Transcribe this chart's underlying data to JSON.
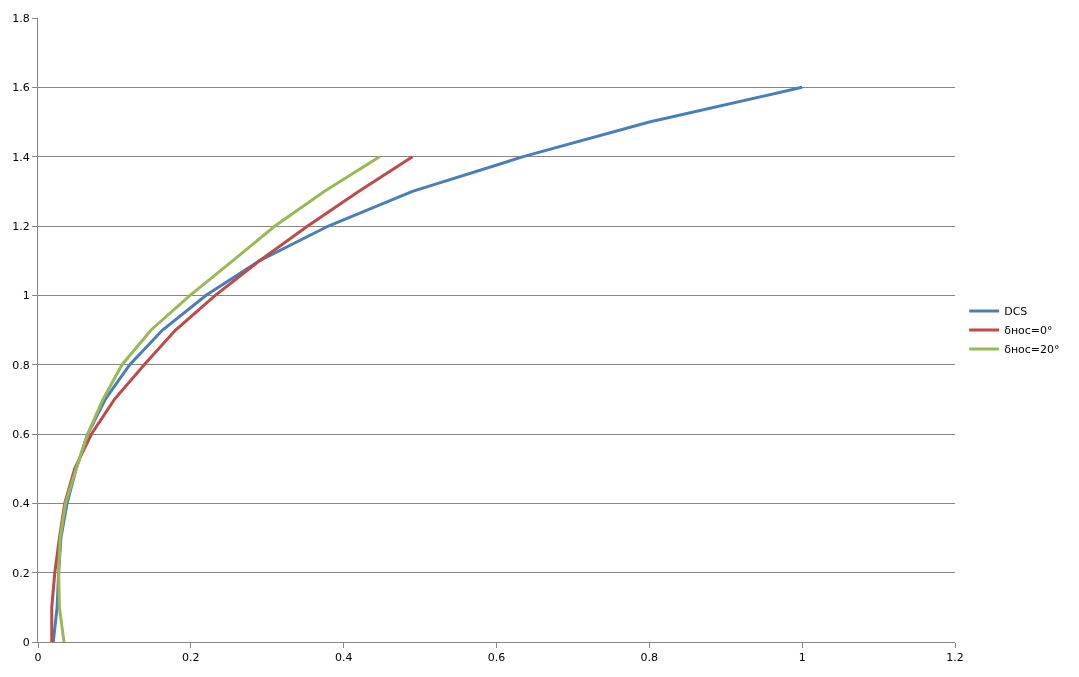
{
  "chart_data": {
    "type": "line",
    "xlim": [
      0,
      1.2
    ],
    "xticks": [
      0,
      0.2,
      0.4,
      0.6,
      0.8,
      1,
      1.2
    ],
    "ylim": [
      0,
      1.8
    ],
    "yticks": [
      0,
      0.2,
      0.4,
      0.6,
      0.8,
      1,
      1.2,
      1.4,
      1.6,
      1.8
    ],
    "grid": "y",
    "legend": "right",
    "marker": "none",
    "line_style": "solid",
    "series": [
      {
        "name": "DCS",
        "color": "#4a7ebb",
        "x": [
          0.02,
          0.025,
          0.027,
          0.03,
          0.038,
          0.05,
          0.065,
          0.088,
          0.12,
          0.163,
          0.22,
          0.29,
          0.38,
          0.49,
          0.635,
          0.8,
          1.0
        ],
        "values": [
          0,
          0.1,
          0.2,
          0.3,
          0.4,
          0.5,
          0.6,
          0.7,
          0.8,
          0.9,
          1.0,
          1.1,
          1.2,
          1.3,
          1.4,
          1.5,
          1.6
        ]
      },
      {
        "name": "δнос=0°",
        "color": "#be4b48",
        "x": [
          0.018,
          0.018,
          0.022,
          0.028,
          0.035,
          0.048,
          0.07,
          0.1,
          0.139,
          0.18,
          0.232,
          0.29,
          0.353,
          0.42,
          0.49
        ],
        "values": [
          0,
          0.1,
          0.2,
          0.3,
          0.4,
          0.5,
          0.6,
          0.7,
          0.8,
          0.9,
          1.0,
          1.1,
          1.2,
          1.3,
          1.4
        ]
      },
      {
        "name": "δнос=20°",
        "color": "#98b954",
        "x": [
          0.034,
          0.028,
          0.027,
          0.029,
          0.036,
          0.05,
          0.065,
          0.085,
          0.11,
          0.148,
          0.199,
          0.255,
          0.31,
          0.375,
          0.447
        ],
        "values": [
          0,
          0.1,
          0.2,
          0.3,
          0.4,
          0.5,
          0.6,
          0.7,
          0.8,
          0.9,
          1.0,
          1.1,
          1.2,
          1.3,
          1.4
        ]
      }
    ]
  }
}
